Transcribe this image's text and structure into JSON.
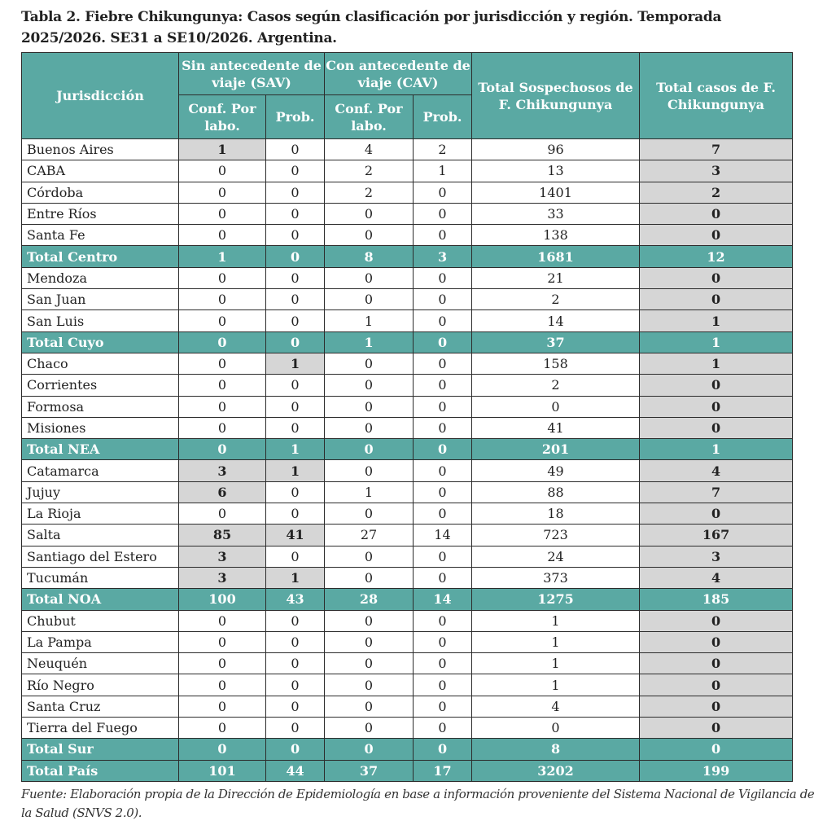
{
  "title": "Tabla 2. Fiebre Chikungunya: Casos según clasificación por jurisdicción y región. Temporada 2025/2026. SE31 a SE10/2026. Argentina.",
  "headers": {
    "jurisdiccion": "Jurisdicción",
    "sav": "Sin antecedente de viaje (SAV)",
    "cav": "Con antecedente de viaje (CAV)",
    "conf": "Conf. Por labo.",
    "prob": "Prob.",
    "total_sospechosos": "Total Sospechosos de F. Chikungunya",
    "total_casos": "Total casos de F. Chikungunya"
  },
  "colors": {
    "teal": "#5aa9a3",
    "highlight": "#d6d6d6"
  },
  "rows": [
    {
      "name": "Buenos Aires",
      "values": [
        "1",
        "0",
        "4",
        "2",
        "96",
        "7"
      ],
      "hl": [
        0
      ]
    },
    {
      "name": "CABA",
      "values": [
        "0",
        "0",
        "2",
        "1",
        "13",
        "3"
      ],
      "hl": []
    },
    {
      "name": "Córdoba",
      "values": [
        "0",
        "0",
        "2",
        "0",
        "1401",
        "2"
      ],
      "hl": []
    },
    {
      "name": "Entre Ríos",
      "values": [
        "0",
        "0",
        "0",
        "0",
        "33",
        "0"
      ],
      "hl": []
    },
    {
      "name": "Santa Fe",
      "values": [
        "0",
        "0",
        "0",
        "0",
        "138",
        "0"
      ],
      "hl": []
    },
    {
      "name": "Total Centro",
      "values": [
        "1",
        "0",
        "8",
        "3",
        "1681",
        "12"
      ],
      "total": true
    },
    {
      "name": "Mendoza",
      "values": [
        "0",
        "0",
        "0",
        "0",
        "21",
        "0"
      ],
      "hl": []
    },
    {
      "name": "San Juan",
      "values": [
        "0",
        "0",
        "0",
        "0",
        "2",
        "0"
      ],
      "hl": []
    },
    {
      "name": "San Luis",
      "values": [
        "0",
        "0",
        "1",
        "0",
        "14",
        "1"
      ],
      "hl": []
    },
    {
      "name": "Total Cuyo",
      "values": [
        "0",
        "0",
        "1",
        "0",
        "37",
        "1"
      ],
      "total": true
    },
    {
      "name": "Chaco",
      "values": [
        "0",
        "1",
        "0",
        "0",
        "158",
        "1"
      ],
      "hl": [
        1
      ]
    },
    {
      "name": "Corrientes",
      "values": [
        "0",
        "0",
        "0",
        "0",
        "2",
        "0"
      ],
      "hl": []
    },
    {
      "name": "Formosa",
      "values": [
        "0",
        "0",
        "0",
        "0",
        "0",
        "0"
      ],
      "hl": []
    },
    {
      "name": "Misiones",
      "values": [
        "0",
        "0",
        "0",
        "0",
        "41",
        "0"
      ],
      "hl": []
    },
    {
      "name": "Total NEA",
      "values": [
        "0",
        "1",
        "0",
        "0",
        "201",
        "1"
      ],
      "total": true
    },
    {
      "name": "Catamarca",
      "values": [
        "3",
        "1",
        "0",
        "0",
        "49",
        "4"
      ],
      "hl": [
        0,
        1
      ]
    },
    {
      "name": "Jujuy",
      "values": [
        "6",
        "0",
        "1",
        "0",
        "88",
        "7"
      ],
      "hl": [
        0
      ]
    },
    {
      "name": "La Rioja",
      "values": [
        "0",
        "0",
        "0",
        "0",
        "18",
        "0"
      ],
      "hl": []
    },
    {
      "name": "Salta",
      "values": [
        "85",
        "41",
        "27",
        "14",
        "723",
        "167"
      ],
      "hl": [
        0,
        1
      ]
    },
    {
      "name": "Santiago del Estero",
      "values": [
        "3",
        "0",
        "0",
        "0",
        "24",
        "3"
      ],
      "hl": [
        0
      ]
    },
    {
      "name": "Tucumán",
      "values": [
        "3",
        "1",
        "0",
        "0",
        "373",
        "4"
      ],
      "hl": [
        0,
        1
      ]
    },
    {
      "name": "Total NOA",
      "values": [
        "100",
        "43",
        "28",
        "14",
        "1275",
        "185"
      ],
      "total": true
    },
    {
      "name": "Chubut",
      "values": [
        "0",
        "0",
        "0",
        "0",
        "1",
        "0"
      ],
      "hl": []
    },
    {
      "name": "La Pampa",
      "values": [
        "0",
        "0",
        "0",
        "0",
        "1",
        "0"
      ],
      "hl": []
    },
    {
      "name": "Neuquén",
      "values": [
        "0",
        "0",
        "0",
        "0",
        "1",
        "0"
      ],
      "hl": []
    },
    {
      "name": "Río Negro",
      "values": [
        "0",
        "0",
        "0",
        "0",
        "1",
        "0"
      ],
      "hl": []
    },
    {
      "name": "Santa Cruz",
      "values": [
        "0",
        "0",
        "0",
        "0",
        "4",
        "0"
      ],
      "hl": []
    },
    {
      "name": "Tierra del Fuego",
      "values": [
        "0",
        "0",
        "0",
        "0",
        "0",
        "0"
      ],
      "hl": []
    },
    {
      "name": "Total Sur",
      "values": [
        "0",
        "0",
        "0",
        "0",
        "8",
        "0"
      ],
      "total": true
    },
    {
      "name": "Total País",
      "values": [
        "101",
        "44",
        "37",
        "17",
        "3202",
        "199"
      ],
      "total": true
    }
  ],
  "source": "Fuente: Elaboración propia de la Dirección de Epidemiología en base a información proveniente del Sistema Nacional de Vigilancia de la Salud (SNVS 2.0)."
}
